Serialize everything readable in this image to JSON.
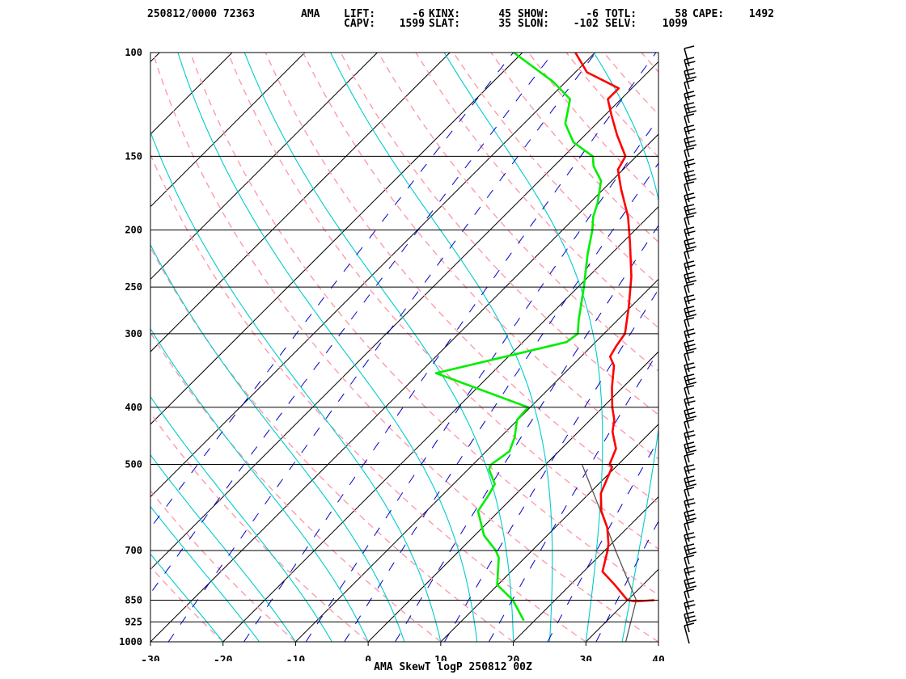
{
  "header": {
    "station_time": "250812/0000 72363",
    "station_id": "AMA",
    "indices_row1": [
      {
        "label": "LIFT:",
        "value": "-6"
      },
      {
        "label": "KINX:",
        "value": "45"
      },
      {
        "label": "SHOW:",
        "value": "-6"
      },
      {
        "label": "TOTL:",
        "value": "58"
      },
      {
        "label": "CAPE:",
        "value": "1492"
      }
    ],
    "indices_row2": [
      {
        "label": "CAPV:",
        "value": "1599"
      },
      {
        "label": "SLAT:",
        "value": "35"
      },
      {
        "label": "SLON:",
        "value": "-102"
      },
      {
        "label": "SELV:",
        "value": "1099"
      }
    ]
  },
  "footer": {
    "caption": "AMA SkewT logP 250812 00Z"
  },
  "chart_data": {
    "type": "line",
    "title": "",
    "xlabel": "",
    "ylabel": "",
    "x_ticks": [
      -30,
      -20,
      -10,
      0,
      10,
      20,
      30,
      40
    ],
    "y_ticks": [
      100,
      150,
      200,
      250,
      300,
      400,
      500,
      700,
      850,
      925,
      1000
    ],
    "xlim": [
      -30,
      40
    ],
    "ylim": [
      1000,
      100
    ],
    "y_scale": "log",
    "skew": "skew-T (isotherms tilted 45°)",
    "colors": {
      "temperature": "#ff0000",
      "dewpoint": "#00ee00",
      "parcel": "#555555",
      "isotherm": "#000000",
      "dry_adiabat": "#ff9aaa",
      "moist_adiabat": "#00cccc",
      "mixing_ratio": "#0000cc",
      "isobar": "#000000"
    },
    "series": [
      {
        "values": [
          [
            850,
            33.7
          ],
          [
            854,
            31.3
          ],
          [
            850,
            30.0
          ],
          [
            800,
            26.1
          ],
          [
            760,
            22.6
          ],
          [
            700,
            20.4
          ],
          [
            682,
            19.6
          ],
          [
            640,
            17.2
          ],
          [
            600,
            14.1
          ],
          [
            560,
            11.6
          ],
          [
            505,
            9.5
          ],
          [
            500,
            8.8
          ],
          [
            470,
            7.5
          ],
          [
            440,
            4.7
          ],
          [
            420,
            3.3
          ],
          [
            400,
            1.3
          ],
          [
            370,
            -1.5
          ],
          [
            340,
            -4.2
          ],
          [
            328,
            -6.0
          ],
          [
            315,
            -6.6
          ],
          [
            300,
            -7.1
          ],
          [
            270,
            -10.3
          ],
          [
            240,
            -14.1
          ],
          [
            210,
            -19.0
          ],
          [
            190,
            -22.8
          ],
          [
            170,
            -27.7
          ],
          [
            158,
            -30.7
          ],
          [
            150,
            -31.5
          ],
          [
            138,
            -35.6
          ],
          [
            128,
            -39.0
          ],
          [
            120,
            -41.8
          ],
          [
            115,
            -41.8
          ],
          [
            108,
            -48.4
          ],
          [
            100,
            -52.7
          ]
        ]
      },
      {
        "values": [
          [
            920,
            18.5
          ],
          [
            850,
            14.2
          ],
          [
            800,
            9.9
          ],
          [
            720,
            6.4
          ],
          [
            700,
            5.0
          ],
          [
            660,
            1.3
          ],
          [
            600,
            -2.9
          ],
          [
            565,
            -3.6
          ],
          [
            540,
            -4.3
          ],
          [
            510,
            -7.1
          ],
          [
            500,
            -7.5
          ],
          [
            475,
            -6.8
          ],
          [
            450,
            -8.0
          ],
          [
            420,
            -10.1
          ],
          [
            400,
            -10.3
          ],
          [
            350,
            -27.7
          ],
          [
            310,
            -14.0
          ],
          [
            300,
            -13.6
          ],
          [
            285,
            -15.3
          ],
          [
            250,
            -19.2
          ],
          [
            220,
            -23.2
          ],
          [
            200,
            -25.9
          ],
          [
            190,
            -27.6
          ],
          [
            180,
            -28.9
          ],
          [
            165,
            -31.5
          ],
          [
            156,
            -34.5
          ],
          [
            150,
            -36.0
          ],
          [
            142,
            -40.6
          ],
          [
            132,
            -44.3
          ],
          [
            120,
            -47.0
          ],
          [
            112,
            -51.8
          ],
          [
            100,
            -61.2
          ]
        ]
      },
      {
        "values": [
          [
            1000,
            35.5
          ],
          [
            850,
            31.2
          ],
          [
            700,
            21.5
          ],
          [
            600,
            14.0
          ],
          [
            500,
            5.0
          ]
        ]
      }
    ],
    "wind_barbs_present": true
  }
}
